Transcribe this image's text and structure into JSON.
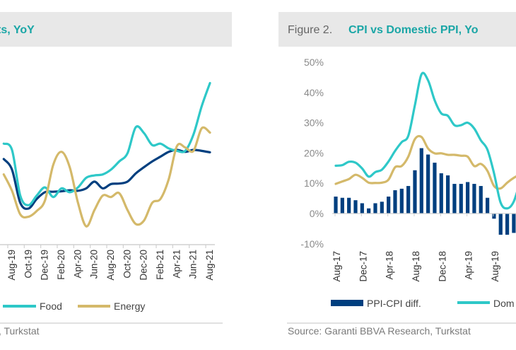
{
  "colors": {
    "teal": "#2ec8c8",
    "navy": "#003f7f",
    "gold": "#d4b96a",
    "title_bar": "#e8e8e8",
    "title_text": "#1aa6a6"
  },
  "left": {
    "title": "ts, YoY",
    "legend": [
      "Food",
      "Energy"
    ],
    "source": ", Turkstat"
  },
  "right": {
    "figure_label": "Figure 2.",
    "title": "CPI vs Domestic PPI, Yo",
    "legend": [
      "PPI-CPI diff.",
      "Dom"
    ],
    "source": "Source: Garanti BBVA Research, Turkstat"
  },
  "chart_data": [
    {
      "type": "line",
      "title": "ts, YoY",
      "x": [
        "Jul-19",
        "Aug-19",
        "Sep-19",
        "Oct-19",
        "Nov-19",
        "Dec-19",
        "Jan-20",
        "Feb-20",
        "Mar-20",
        "Apr-20",
        "May-20",
        "Jun-20",
        "Jul-20",
        "Aug-20",
        "Sep-20",
        "Oct-20",
        "Nov-20",
        "Dec-20",
        "Jan-21",
        "Feb-21",
        "Mar-21",
        "Apr-21",
        "May-21",
        "Jun-21",
        "Jul-21",
        "Aug-21"
      ],
      "tick_labels": [
        "Aug-19",
        "Oct-19",
        "Dec-19",
        "Feb-20",
        "Apr-20",
        "Jun-20",
        "Aug-20",
        "Oct-20",
        "Dec-20",
        "Feb-21",
        "Apr-21",
        "Jun-21",
        "Aug-21"
      ],
      "series": [
        {
          "color": "#003f7f",
          "values": [
            13.1,
            10.9,
            4.0,
            2.8,
            4.8,
            6.2,
            6.3,
            6.4,
            6.6,
            6.5,
            7.0,
            8.4,
            7.0,
            7.9,
            8.0,
            8.4,
            10.1,
            11.4,
            12.6,
            13.6,
            14.6,
            15.0,
            14.6,
            15.0,
            14.8,
            14.5
          ]
        },
        {
          "name": "Food",
          "color": "#2ec8c8",
          "values": [
            16.3,
            15.0,
            5.5,
            3.5,
            5.5,
            7.2,
            5.2,
            7.0,
            6.2,
            7.2,
            9.2,
            9.7,
            9.9,
            10.9,
            12.6,
            14.3,
            19.7,
            18.5,
            16.0,
            16.3,
            15.3,
            14.8,
            14.8,
            18.2,
            24.1,
            28.9
          ]
        },
        {
          "name": "Energy",
          "color": "#d4b96a",
          "values": [
            9.9,
            6.5,
            1.6,
            1.1,
            2.3,
            4.5,
            11.9,
            14.6,
            11.4,
            4.0,
            -0.9,
            2.5,
            5.5,
            5.2,
            6.0,
            2.5,
            -0.4,
            0.3,
            4.0,
            4.8,
            8.9,
            15.8,
            15.5,
            14.8,
            19.5,
            18.6
          ]
        }
      ],
      "xlabel": "",
      "ylabel": "",
      "legend": "bottom"
    },
    {
      "type": "bar+line",
      "title": "CPI vs Domestic PPI, Yo",
      "x": [
        "Aug-17",
        "Sep-17",
        "Oct-17",
        "Nov-17",
        "Dec-17",
        "Jan-18",
        "Feb-18",
        "Mar-18",
        "Apr-18",
        "May-18",
        "Jun-18",
        "Jul-18",
        "Aug-18",
        "Sep-18",
        "Oct-18",
        "Nov-18",
        "Dec-18",
        "Jan-19",
        "Feb-19",
        "Mar-19",
        "Apr-19",
        "May-19",
        "Jun-19",
        "Jul-19",
        "Aug-19",
        "Sep-19",
        "Oct-19",
        "Nov-19"
      ],
      "tick_labels": [
        "Aug-17",
        "Dec-17",
        "Apr-18",
        "Aug-18",
        "Dec-18",
        "Apr-19",
        "Aug-19"
      ],
      "yticks": [
        "50%",
        "40%",
        "30%",
        "20%",
        "10%",
        "0%",
        "-10%"
      ],
      "ylim": [
        -10,
        50
      ],
      "series": [
        {
          "name": "PPI-CPI diff.",
          "type": "bar",
          "color": "#003f7f",
          "values": [
            5.6,
            5.2,
            5.2,
            4.4,
            3.4,
            1.7,
            3.4,
            3.9,
            5.6,
            7.7,
            8.2,
            9.1,
            14.3,
            21.6,
            19.5,
            16.8,
            13.3,
            12.6,
            9.8,
            9.8,
            10.4,
            9.8,
            9.1,
            5.2,
            -1.7,
            -7.0,
            -7.0,
            -6.4
          ]
        },
        {
          "name": "Dom",
          "type": "line",
          "color": "#2ec8c8",
          "values": [
            15.8,
            16.0,
            17.1,
            16.8,
            14.9,
            12.2,
            13.7,
            14.5,
            17.2,
            20.7,
            23.6,
            25.7,
            35.8,
            46.0,
            44.0,
            37.4,
            33.1,
            32.3,
            29.2,
            29.2,
            30.0,
            28.1,
            24.2,
            21.1,
            13.3,
            3.6,
            1.7,
            4.0
          ]
        },
        {
          "type": "line",
          "color": "#d4b96a",
          "values": [
            9.8,
            10.6,
            11.4,
            12.8,
            11.8,
            10.2,
            10.1,
            10.2,
            11.2,
            15.3,
            15.7,
            18.8,
            24.6,
            25.3,
            21.5,
            19.9,
            19.9,
            19.4,
            19.4,
            19.1,
            18.8,
            15.7,
            16.4,
            14.1,
            9.1,
            8.3,
            10.2,
            11.8
          ]
        }
      ],
      "xlabel": "",
      "ylabel": "",
      "legend": "bottom"
    }
  ]
}
